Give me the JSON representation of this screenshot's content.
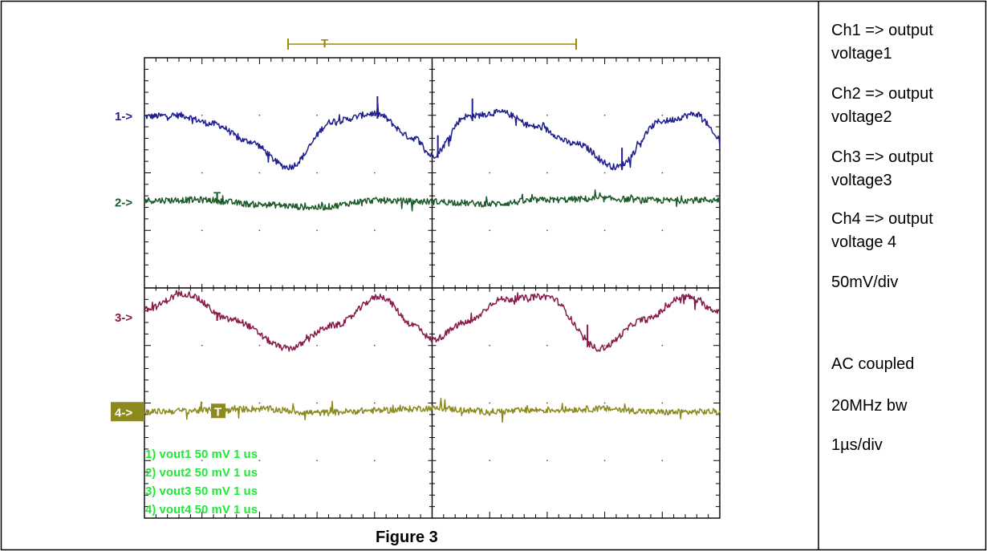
{
  "figure": {
    "caption": "Figure 3"
  },
  "side_notes": [
    {
      "line1": "Ch1 => output",
      "line2": "voltage1"
    },
    {
      "line1": "Ch2 => output",
      "line2": "voltage2"
    },
    {
      "line1": "Ch3 => output",
      "line2": "voltage3"
    },
    {
      "line1": "Ch4 => output",
      "line2": "voltage 4"
    }
  ],
  "settings": {
    "vdiv": "50mV/div",
    "coupling": "AC coupled",
    "bandwidth": "20MHz bw",
    "timebase": "1µs/div"
  },
  "colors": {
    "ch1": "#1f1f8f",
    "ch2": "#1d5a2b",
    "ch3": "#8a1a4a",
    "ch4": "#8c8a1e",
    "info_text": "#22e83a",
    "trigger_bar": "#9a8a10",
    "grid": "#000000"
  },
  "chart_data": {
    "type": "line",
    "title": "",
    "xlabel": "",
    "ylabel": "",
    "x_divisions": 10,
    "y_divisions": 8,
    "grid": true,
    "channel_markers": [
      "1->",
      "2->",
      "3->",
      "4->"
    ],
    "trigger_marker": "T",
    "channel_info": [
      {
        "text": "1) vout1  50 mV   1 us"
      },
      {
        "text": "2) vout2  50 mV   1 us"
      },
      {
        "text": "3) vout3  50 mV   1 us"
      },
      {
        "text": "4) vout4  50 mV   1 us"
      }
    ],
    "series": [
      {
        "name": "vout1",
        "offset_div": 1.0,
        "x": [
          0,
          0.6,
          1.2,
          1.8,
          2.5,
          3.3,
          4.0,
          4.7,
          5.0,
          5.6,
          6.2,
          6.8,
          7.5,
          8.2,
          9.0,
          9.6,
          10.0
        ],
        "y": [
          -0.02,
          0.0,
          -0.15,
          -0.45,
          -0.9,
          -0.1,
          0.03,
          -0.4,
          -0.7,
          -0.02,
          0.05,
          -0.2,
          -0.5,
          -0.9,
          -0.1,
          0.02,
          -0.4
        ],
        "spikes_x": [
          4.05,
          5.1,
          5.7,
          8.3
        ]
      },
      {
        "name": "vout2",
        "offset_div": 2.5,
        "x": [
          0,
          1.0,
          2.0,
          3.0,
          4.0,
          5.0,
          6.0,
          7.0,
          8.0,
          9.0,
          10.0
        ],
        "y": [
          0.02,
          0.03,
          -0.05,
          -0.1,
          0.02,
          0.0,
          -0.04,
          0.03,
          0.05,
          0.02,
          0.03
        ],
        "spikes_x": []
      },
      {
        "name": "vout3",
        "offset_div": 4.5,
        "x": [
          0,
          0.7,
          1.5,
          2.5,
          3.3,
          4.1,
          4.7,
          5.0,
          5.6,
          6.2,
          7.0,
          7.9,
          8.7,
          9.4,
          10.0
        ],
        "y": [
          0.12,
          0.4,
          -0.05,
          -0.55,
          -0.15,
          0.35,
          -0.15,
          -0.4,
          -0.1,
          0.3,
          0.35,
          -0.55,
          -0.05,
          0.35,
          0.1
        ],
        "spikes_x": [
          7.7
        ]
      },
      {
        "name": "vout4",
        "offset_div": 6.15,
        "x": [
          0,
          1.0,
          2.0,
          3.0,
          4.0,
          5.0,
          6.0,
          7.0,
          8.0,
          9.0,
          10.0
        ],
        "y": [
          0.0,
          0.02,
          0.05,
          -0.02,
          0.02,
          0.06,
          0.0,
          0.03,
          0.05,
          -0.01,
          0.0
        ],
        "spikes_x": []
      }
    ]
  }
}
